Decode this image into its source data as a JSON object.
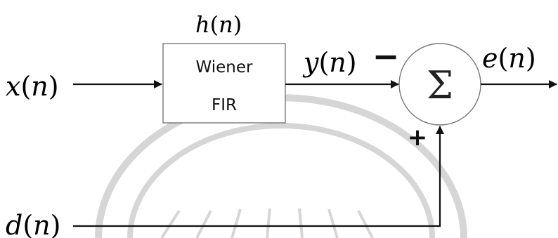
{
  "diagram": {
    "input_signal": {
      "name": "x",
      "arg": "n"
    },
    "desired_signal": {
      "name": "d",
      "arg": "n"
    },
    "filter": {
      "response": {
        "name": "h",
        "arg": "n"
      },
      "line1": "Wiener",
      "line2": "FIR"
    },
    "filter_output": {
      "name": "y",
      "arg": "n"
    },
    "summer": {
      "symbol": "Σ",
      "minus_sign": "−",
      "plus_sign": "+"
    },
    "error_signal": {
      "name": "e",
      "arg": "n"
    }
  }
}
